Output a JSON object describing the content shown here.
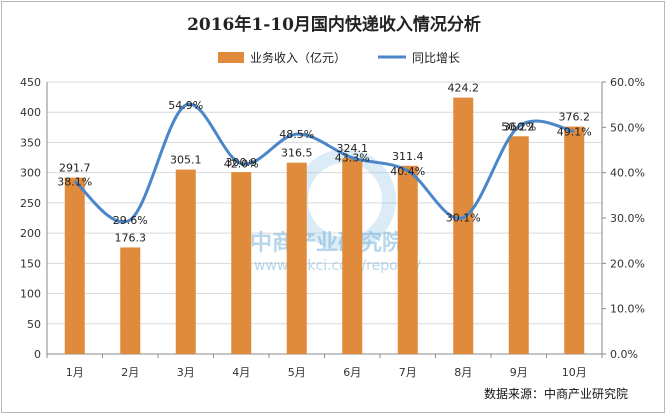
{
  "chart_data": {
    "type": "bar+line",
    "title": "2016年1-10月国内快递收入情况分析",
    "categories": [
      "1月",
      "2月",
      "3月",
      "4月",
      "5月",
      "6月",
      "7月",
      "8月",
      "9月",
      "10月"
    ],
    "series": [
      {
        "name": "业务收入（亿元）",
        "type": "bar",
        "axis": "left",
        "values": [
          291.7,
          176.3,
          305.1,
          300.9,
          316.5,
          324.1,
          311.4,
          424.2,
          360.2,
          376.2
        ],
        "labels": [
          "291.7",
          "176.3",
          "305.1",
          "300.9",
          "316.5",
          "324.1",
          "311.4",
          "424.2",
          "360.2",
          "376.2"
        ],
        "color": "#e08a3c"
      },
      {
        "name": "同比增长",
        "type": "line",
        "axis": "right",
        "values": [
          38.1,
          29.6,
          54.9,
          42.0,
          48.5,
          43.3,
          40.4,
          30.1,
          50.2,
          49.1
        ],
        "labels": [
          "38.1%",
          "29.6%",
          "54.9%",
          "42.0%",
          "48.5%",
          "43.3%",
          "40.4%",
          "30.1%",
          "50.2%",
          "49.1%"
        ],
        "color": "#4a86c8"
      }
    ],
    "y_left": {
      "min": 0,
      "max": 450,
      "step": 50,
      "ticks": [
        "0",
        "50",
        "100",
        "150",
        "200",
        "250",
        "300",
        "350",
        "400",
        "450"
      ]
    },
    "y_right": {
      "min": 0,
      "max": 60,
      "step": 10,
      "ticks": [
        "0.0%",
        "10.0%",
        "20.0%",
        "30.0%",
        "40.0%",
        "50.0%",
        "60.0%"
      ]
    },
    "legend_position": "top-center",
    "grid": true
  },
  "watermark": {
    "name": "中商产业研究院",
    "url": "www.askci.com/reports/"
  },
  "source": "数据来源：中商产业研究院"
}
